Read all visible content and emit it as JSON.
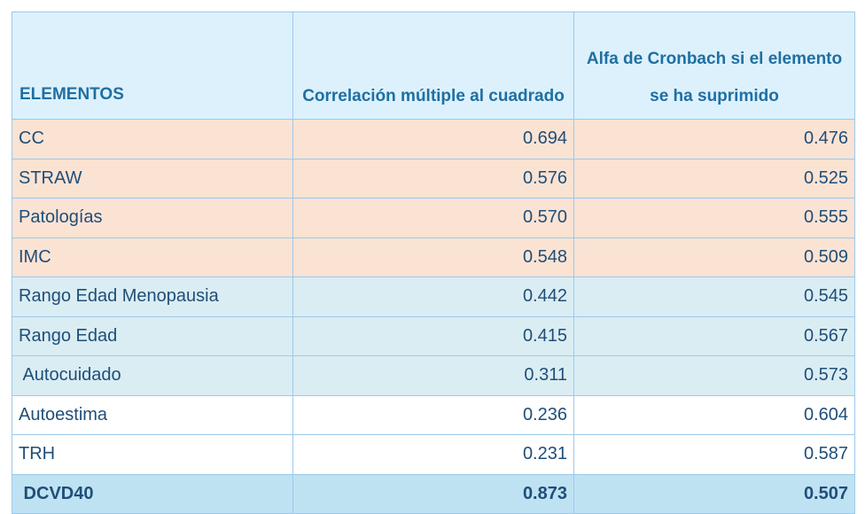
{
  "table": {
    "headers": [
      "ELEMENTOS",
      "Correlación múltiple al cuadrado",
      "Alfa de Cronbach si el elemento se ha suprimido"
    ],
    "rows": [
      {
        "group": "orange",
        "label": "CC",
        "corr": "0.694",
        "alpha": "0.476"
      },
      {
        "group": "orange",
        "label": "STRAW",
        "corr": "0.576",
        "alpha": "0.525"
      },
      {
        "group": "orange",
        "label": "Patologías",
        "corr": "0.570",
        "alpha": "0.555"
      },
      {
        "group": "orange",
        "label": "IMC",
        "corr": "0.548",
        "alpha": "0.509"
      },
      {
        "group": "blue",
        "label": "Rango Edad Menopausia",
        "corr": "0.442",
        "alpha": "0.545"
      },
      {
        "group": "blue",
        "label": "Rango Edad",
        "corr": "0.415",
        "alpha": "0.567"
      },
      {
        "group": "blue",
        "label": " Autocuidado",
        "corr": "0.311",
        "alpha": "0.573"
      },
      {
        "group": "white",
        "label": "Autoestima",
        "corr": "0.236",
        "alpha": "0.604"
      },
      {
        "group": "white",
        "label": "TRH",
        "corr": "0.231",
        "alpha": "0.587"
      },
      {
        "group": "total",
        "label": " DCVD40",
        "corr": "0.873",
        "alpha": "0.507"
      }
    ]
  },
  "colors": {
    "orange_row": "#fbe3d4",
    "blue_row": "#daedf3",
    "white_row": "#ffffff",
    "total_row": "#bfe2f3",
    "header_bg": "#ddf1fc",
    "header_text": "#1f6fa3",
    "body_text": "#1f4e78",
    "border": "#9cc9ea"
  }
}
